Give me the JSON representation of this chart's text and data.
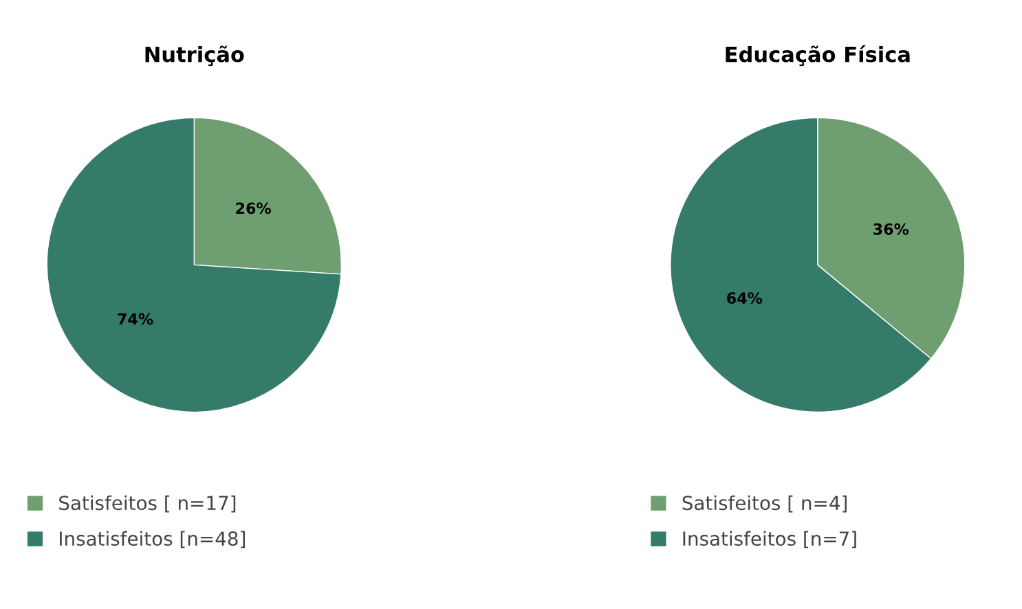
{
  "chart_data": [
    {
      "type": "pie",
      "title": "Nutrição",
      "categories": [
        "Satisfeitos [ n=17]",
        "Insatisfeitos [n=48]"
      ],
      "values": [
        26,
        74
      ],
      "colors": [
        "#6f9e70",
        "#357b69"
      ],
      "value_labels": [
        "26%",
        "74%"
      ],
      "legend": "bottom"
    },
    {
      "type": "pie",
      "title": "Educação Física",
      "categories": [
        "Satisfeitos [ n=4]",
        "Insatisfeitos [n=7]"
      ],
      "values": [
        36,
        64
      ],
      "colors": [
        "#6f9e70",
        "#357b69"
      ],
      "value_labels": [
        "36%",
        "64%"
      ],
      "legend": "bottom"
    }
  ]
}
